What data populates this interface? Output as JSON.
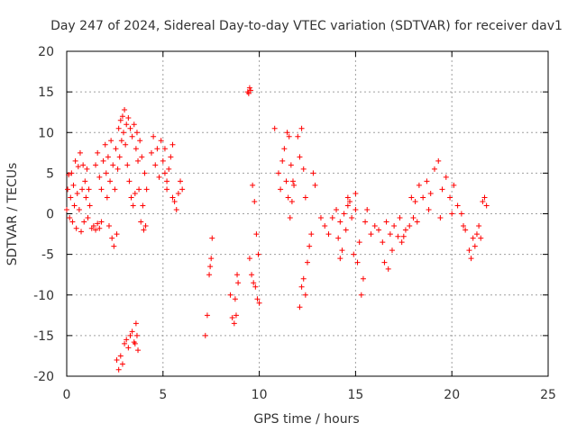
{
  "chart_data": {
    "type": "scatter",
    "title": "Day 247 of 2024, Sidereal Day-to-day VTEC variation (SDTVAR) for receiver dav1",
    "xlabel": "GPS time / hours",
    "ylabel": "SDTVAR / TECUs",
    "xlim": [
      0,
      25
    ],
    "ylim": [
      -20,
      20
    ],
    "xticks": [
      "0",
      "5",
      "10",
      "15",
      "20",
      "25"
    ],
    "yticks": [
      "-20",
      "-15",
      "-10",
      "-5",
      "0",
      "5",
      "10",
      "15",
      "20"
    ],
    "grid": true,
    "marker": "+",
    "colors": {
      "series": "#ff0000",
      "axes": "#000000",
      "grid": "#a0a0a0",
      "text": "#333333"
    },
    "series": [
      {
        "name": "SDTVAR",
        "points": [
          [
            0.0,
            0.5
          ],
          [
            0.05,
            3.0
          ],
          [
            0.1,
            4.8
          ],
          [
            0.15,
            -0.5
          ],
          [
            0.2,
            2.0
          ],
          [
            0.25,
            5.0
          ],
          [
            0.3,
            -1.0
          ],
          [
            0.35,
            3.5
          ],
          [
            0.4,
            1.0
          ],
          [
            0.45,
            6.5
          ],
          [
            0.5,
            -1.8
          ],
          [
            0.55,
            2.5
          ],
          [
            0.6,
            5.8
          ],
          [
            0.65,
            0.5
          ],
          [
            0.7,
            7.5
          ],
          [
            0.75,
            -2.2
          ],
          [
            0.8,
            3.0
          ],
          [
            0.85,
            6.0
          ],
          [
            0.9,
            -1.0
          ],
          [
            0.95,
            4.0
          ],
          [
            1.0,
            2.0
          ],
          [
            1.05,
            5.5
          ],
          [
            1.1,
            -0.5
          ],
          [
            1.15,
            3.0
          ],
          [
            1.2,
            1.0
          ],
          [
            1.3,
            -1.8
          ],
          [
            1.4,
            -1.5
          ],
          [
            1.5,
            -2.0
          ],
          [
            1.6,
            -1.2
          ],
          [
            1.7,
            -1.8
          ],
          [
            1.8,
            -1.0
          ],
          [
            1.5,
            6.0
          ],
          [
            1.6,
            7.5
          ],
          [
            1.7,
            4.5
          ],
          [
            1.8,
            3.0
          ],
          [
            1.9,
            6.5
          ],
          [
            2.0,
            8.5
          ],
          [
            2.05,
            5.0
          ],
          [
            2.1,
            2.0
          ],
          [
            2.15,
            7.0
          ],
          [
            2.2,
            -1.5
          ],
          [
            2.25,
            4.0
          ],
          [
            2.3,
            9.0
          ],
          [
            2.35,
            -3.0
          ],
          [
            2.4,
            6.0
          ],
          [
            2.45,
            -4.0
          ],
          [
            2.5,
            3.0
          ],
          [
            2.55,
            8.0
          ],
          [
            2.6,
            -2.5
          ],
          [
            2.65,
            5.5
          ],
          [
            2.7,
            10.5
          ],
          [
            2.75,
            7.0
          ],
          [
            2.8,
            11.5
          ],
          [
            2.85,
            9.0
          ],
          [
            2.9,
            12.0
          ],
          [
            2.95,
            10.0
          ],
          [
            3.0,
            12.8
          ],
          [
            3.05,
            8.5
          ],
          [
            3.1,
            11.0
          ],
          [
            3.15,
            6.0
          ],
          [
            3.2,
            11.8
          ],
          [
            3.25,
            4.0
          ],
          [
            3.3,
            10.5
          ],
          [
            3.35,
            2.0
          ],
          [
            3.4,
            9.5
          ],
          [
            3.45,
            1.0
          ],
          [
            3.5,
            11.0
          ],
          [
            3.55,
            2.5
          ],
          [
            3.6,
            8.0
          ],
          [
            3.65,
            10.0
          ],
          [
            3.7,
            6.5
          ],
          [
            3.75,
            3.0
          ],
          [
            3.8,
            9.0
          ],
          [
            3.85,
            -1.0
          ],
          [
            3.9,
            7.0
          ],
          [
            3.95,
            1.0
          ],
          [
            4.0,
            -2.0
          ],
          [
            4.05,
            5.0
          ],
          [
            4.1,
            -1.5
          ],
          [
            4.15,
            3.0
          ],
          [
            2.6,
            -18.0
          ],
          [
            2.7,
            -19.2
          ],
          [
            2.8,
            -17.5
          ],
          [
            2.9,
            -18.5
          ],
          [
            3.0,
            -16.0
          ],
          [
            3.1,
            -15.5
          ],
          [
            3.2,
            -16.5
          ],
          [
            3.3,
            -15.0
          ],
          [
            3.4,
            -14.5
          ],
          [
            3.5,
            -15.8
          ],
          [
            3.6,
            -13.5
          ],
          [
            3.7,
            -16.8
          ],
          [
            3.65,
            -15.0
          ],
          [
            3.55,
            -16.0
          ],
          [
            4.4,
            7.5
          ],
          [
            4.5,
            9.5
          ],
          [
            4.6,
            6.0
          ],
          [
            4.7,
            8.0
          ],
          [
            4.8,
            4.5
          ],
          [
            4.9,
            9.0
          ],
          [
            5.0,
            6.5
          ],
          [
            5.1,
            8.0
          ],
          [
            5.2,
            3.0
          ],
          [
            5.3,
            5.5
          ],
          [
            5.4,
            7.0
          ],
          [
            5.5,
            8.5
          ],
          [
            5.1,
            5.0
          ],
          [
            5.2,
            4.0
          ],
          [
            5.5,
            2.0
          ],
          [
            5.6,
            1.5
          ],
          [
            5.7,
            0.5
          ],
          [
            5.8,
            2.5
          ],
          [
            5.9,
            4.0
          ],
          [
            6.0,
            3.0
          ],
          [
            7.2,
            -15.0
          ],
          [
            7.3,
            -12.5
          ],
          [
            7.4,
            -7.5
          ],
          [
            7.5,
            -5.5
          ],
          [
            7.55,
            -3.0
          ],
          [
            7.45,
            -6.5
          ],
          [
            8.5,
            -10.0
          ],
          [
            8.6,
            -12.8
          ],
          [
            8.7,
            -13.5
          ],
          [
            8.8,
            -12.5
          ],
          [
            8.9,
            -8.5
          ],
          [
            8.85,
            -7.5
          ],
          [
            8.75,
            -10.5
          ],
          [
            9.4,
            15.0
          ],
          [
            9.5,
            15.5
          ],
          [
            9.45,
            14.8
          ],
          [
            9.55,
            15.2
          ],
          [
            9.5,
            -5.5
          ],
          [
            9.6,
            -7.5
          ],
          [
            9.7,
            -8.5
          ],
          [
            9.8,
            -9.0
          ],
          [
            9.9,
            -10.5
          ],
          [
            10.0,
            -11.0
          ],
          [
            9.65,
            3.5
          ],
          [
            9.75,
            1.5
          ],
          [
            9.85,
            -2.5
          ],
          [
            9.95,
            -5.0
          ],
          [
            10.8,
            10.5
          ],
          [
            11.0,
            5.0
          ],
          [
            11.1,
            3.0
          ],
          [
            11.2,
            6.5
          ],
          [
            11.3,
            8.0
          ],
          [
            11.4,
            4.0
          ],
          [
            11.5,
            2.0
          ],
          [
            11.6,
            -0.5
          ],
          [
            11.7,
            1.5
          ],
          [
            11.8,
            3.5
          ],
          [
            11.55,
            9.5
          ],
          [
            11.45,
            10.0
          ],
          [
            11.65,
            6.0
          ],
          [
            11.75,
            4.0
          ],
          [
            12.0,
            9.5
          ],
          [
            12.1,
            7.0
          ],
          [
            12.2,
            10.5
          ],
          [
            12.3,
            5.5
          ],
          [
            12.4,
            2.0
          ],
          [
            12.1,
            -11.5
          ],
          [
            12.2,
            -9.0
          ],
          [
            12.3,
            -8.0
          ],
          [
            12.4,
            -10.0
          ],
          [
            12.5,
            -6.0
          ],
          [
            12.6,
            -4.0
          ],
          [
            12.7,
            -2.5
          ],
          [
            12.8,
            5.0
          ],
          [
            12.9,
            3.5
          ],
          [
            13.2,
            -0.5
          ],
          [
            13.4,
            -1.5
          ],
          [
            13.6,
            -2.5
          ],
          [
            13.8,
            -0.5
          ],
          [
            14.0,
            0.5
          ],
          [
            14.2,
            -1.0
          ],
          [
            14.4,
            0.0
          ],
          [
            14.6,
            1.0
          ],
          [
            14.8,
            -0.5
          ],
          [
            15.0,
            0.5
          ],
          [
            14.1,
            -3.0
          ],
          [
            14.3,
            -4.5
          ],
          [
            14.5,
            -2.0
          ],
          [
            14.7,
            1.5
          ],
          [
            14.9,
            -5.0
          ],
          [
            15.1,
            -6.0
          ],
          [
            15.2,
            -3.5
          ],
          [
            15.3,
            -10.0
          ],
          [
            15.4,
            -8.0
          ],
          [
            15.5,
            -1.0
          ],
          [
            14.2,
            -5.5
          ],
          [
            14.6,
            2.0
          ],
          [
            15.0,
            2.5
          ],
          [
            15.6,
            0.5
          ],
          [
            15.8,
            -2.5
          ],
          [
            16.0,
            -1.5
          ],
          [
            16.2,
            -2.0
          ],
          [
            16.4,
            -3.5
          ],
          [
            16.6,
            -1.0
          ],
          [
            16.8,
            -2.5
          ],
          [
            17.0,
            -1.5
          ],
          [
            17.2,
            -2.8
          ],
          [
            17.4,
            -3.5
          ],
          [
            17.6,
            -2.0
          ],
          [
            17.8,
            -1.5
          ],
          [
            18.0,
            -0.5
          ],
          [
            16.5,
            -6.0
          ],
          [
            16.7,
            -6.8
          ],
          [
            16.9,
            -4.5
          ],
          [
            17.3,
            -0.5
          ],
          [
            17.5,
            -2.8
          ],
          [
            17.9,
            2.0
          ],
          [
            18.1,
            1.5
          ],
          [
            18.3,
            3.5
          ],
          [
            18.5,
            2.0
          ],
          [
            18.7,
            4.0
          ],
          [
            18.9,
            2.5
          ],
          [
            19.1,
            5.5
          ],
          [
            19.3,
            6.5
          ],
          [
            19.5,
            3.0
          ],
          [
            19.7,
            4.5
          ],
          [
            19.9,
            2.0
          ],
          [
            20.1,
            3.5
          ],
          [
            20.3,
            1.0
          ],
          [
            20.5,
            0.0
          ],
          [
            20.7,
            -2.0
          ],
          [
            20.9,
            -4.5
          ],
          [
            21.0,
            -5.5
          ],
          [
            21.1,
            -3.0
          ],
          [
            21.2,
            -4.0
          ],
          [
            21.3,
            -2.5
          ],
          [
            21.4,
            -1.5
          ],
          [
            21.5,
            -3.0
          ],
          [
            21.6,
            1.5
          ],
          [
            21.7,
            2.0
          ],
          [
            21.8,
            1.0
          ],
          [
            18.2,
            -1.0
          ],
          [
            18.8,
            0.5
          ],
          [
            19.4,
            -0.5
          ],
          [
            20.0,
            0.0
          ],
          [
            20.6,
            -1.5
          ]
        ]
      }
    ]
  }
}
